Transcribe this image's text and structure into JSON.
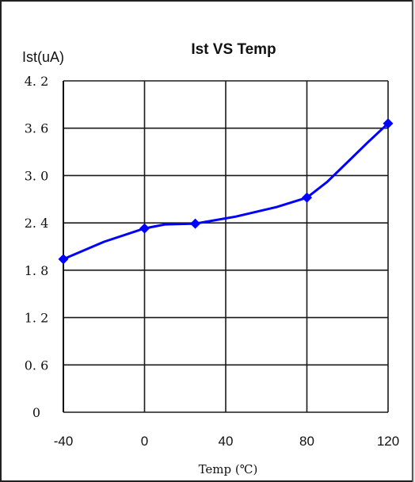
{
  "chart_data": {
    "type": "line",
    "title": "Ist VS Temp",
    "ylabel": "Ist(uA)",
    "xlabel": "Temp (℃)",
    "x_ticks": [
      -40,
      0,
      40,
      80,
      120
    ],
    "y_ticks": [
      "0",
      "0.6",
      "1.2",
      "1.8",
      "2.4",
      "3.0",
      "3.6",
      "4.2"
    ],
    "xlim": [
      -40,
      120
    ],
    "ylim": [
      0,
      4.2
    ],
    "grid": true,
    "series": [
      {
        "color": "#0000ff",
        "x": [
          -40,
          -20,
          0,
          10,
          25,
          45,
          65,
          80,
          90,
          100,
          110,
          120
        ],
        "y": [
          1.94,
          2.16,
          2.33,
          2.38,
          2.39,
          2.48,
          2.6,
          2.72,
          2.92,
          3.17,
          3.42,
          3.66
        ],
        "markers_x": [
          -40,
          0,
          25,
          80,
          120
        ],
        "markers_y": [
          1.94,
          2.33,
          2.39,
          2.72,
          3.66
        ]
      }
    ]
  }
}
